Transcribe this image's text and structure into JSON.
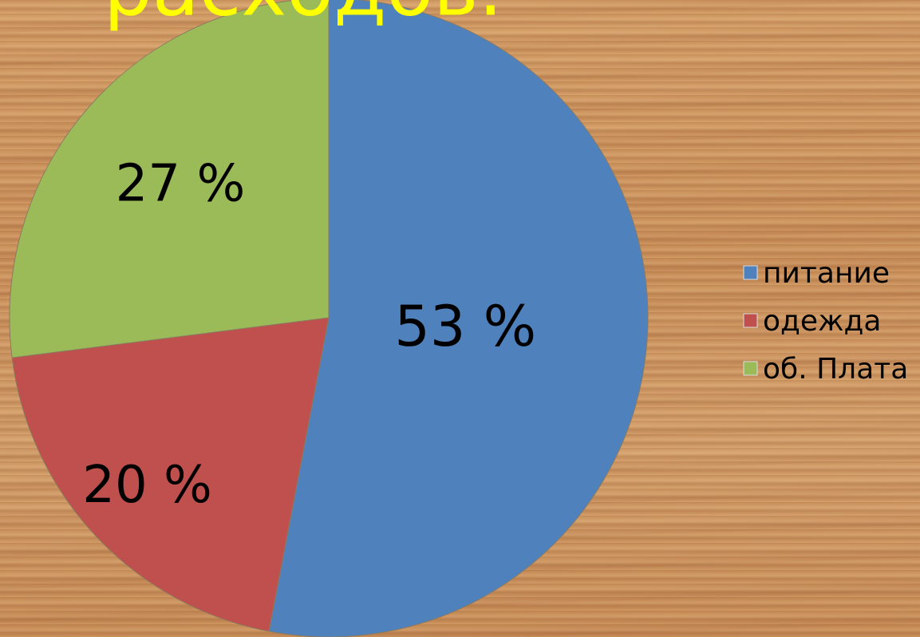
{
  "chart_data": {
    "type": "pie",
    "title": "расходов.",
    "categories": [
      "питание",
      "одежда",
      "об. Плата"
    ],
    "values": [
      53,
      20,
      27
    ],
    "value_labels": [
      "53 %",
      "20 %",
      "27 %"
    ],
    "colors": [
      "#4f81bd",
      "#c0504d",
      "#9bbb59"
    ],
    "legend": "right"
  }
}
